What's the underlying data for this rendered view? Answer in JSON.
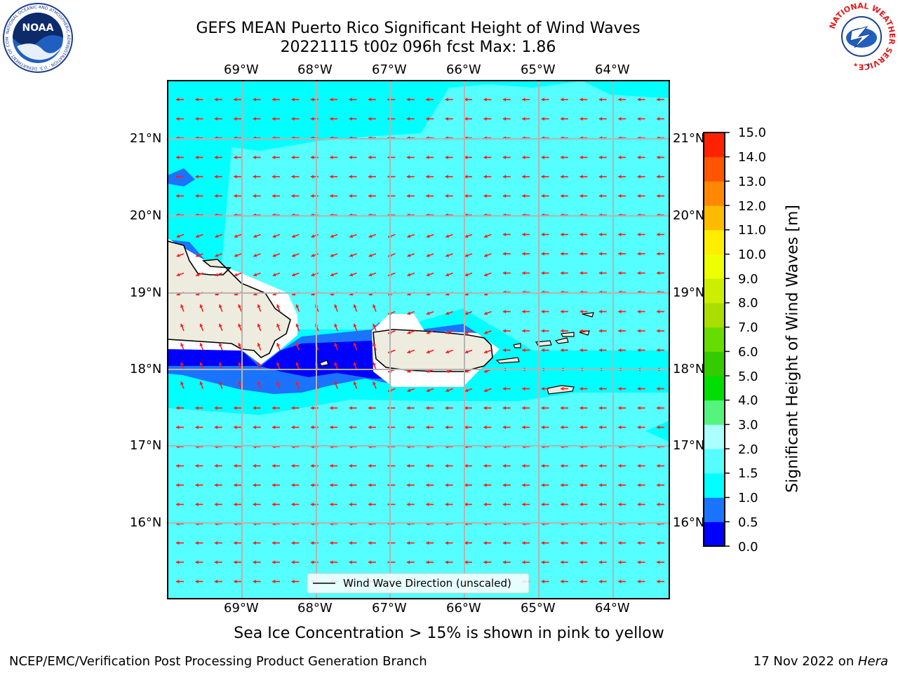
{
  "header": {
    "title_line1": "GEFS MEAN Puerto Rico Significant Height of Wind Waves",
    "title_line2": "20221115 t00z 096h fcst   Max: 1.86"
  },
  "logos": {
    "noaa_text": "NOAA",
    "noaa_ring": "NATIONAL OCEANIC AND ATMOSPHERIC ADMINISTRATION · U.S. DEPARTMENT OF COMMERCE",
    "nws_ring": "NATIONAL WEATHER SERVICE"
  },
  "map": {
    "lon_labels": [
      "69°W",
      "68°W",
      "67°W",
      "66°W",
      "65°W",
      "64°W"
    ],
    "lat_labels": [
      "21°N",
      "20°N",
      "19°N",
      "18°N",
      "17°N",
      "16°N"
    ],
    "legend_label": "Wind Wave Direction (unscaled)",
    "colors": {
      "ocean_low": "#00ffff",
      "ocean_mid": "#55ffff",
      "ocean_deep": "#1a74ff",
      "ocean_darkest": "#0000ff",
      "land": "#eeecdf",
      "arrow": "#ff1a1a",
      "grid": "#b4b4b4"
    }
  },
  "colorbar": {
    "label": "Significant Height of Wind Waves [m]",
    "ticks": [
      "15.0",
      "14.0",
      "13.0",
      "12.0",
      "11.0",
      "10.0",
      "9.0",
      "8.0",
      "7.0",
      "6.0",
      "5.0",
      "4.0",
      "3.0",
      "2.0",
      "1.5",
      "1.0",
      "0.5",
      "0.0"
    ],
    "colors": [
      "#0000ff",
      "#1a74ff",
      "#00ffff",
      "#55ffff",
      "#aaffff",
      "#55f57d",
      "#00dd00",
      "#33cc00",
      "#66dd00",
      "#aadd00",
      "#ccee00",
      "#eeff00",
      "#ffee00",
      "#ffbb00",
      "#ff8800",
      "#ff5500",
      "#ff2200"
    ]
  },
  "footer": {
    "ice_note": "Sea Ice Concentration > 15% is shown in pink to yellow",
    "credit": "NCEP/EMC/Verification Post Processing Product Generation Branch",
    "date": "17 Nov 2022 on ",
    "host": "Hera"
  }
}
